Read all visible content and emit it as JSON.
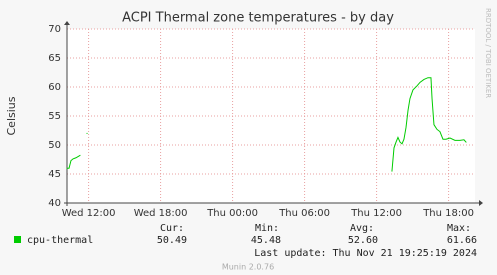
{
  "chart_data": {
    "type": "line",
    "title": "ACPI Thermal zone temperatures - by day",
    "y_label": "Celsius",
    "watermark": "RRDTOOL / TOBI OETIKER",
    "xlim": [
      10.2,
      44.2
    ],
    "xticks": [
      {
        "value": 12,
        "label": "Wed 12:00"
      },
      {
        "value": 18,
        "label": "Wed 18:00"
      },
      {
        "value": 24,
        "label": "Thu 00:00"
      },
      {
        "value": 30,
        "label": "Thu 06:00"
      },
      {
        "value": 36,
        "label": "Thu 12:00"
      },
      {
        "value": 42,
        "label": "Thu 18:00"
      }
    ],
    "ylim": [
      40,
      70
    ],
    "yticks": [
      40,
      45,
      50,
      55,
      60,
      65,
      70
    ],
    "grid": true,
    "x": [
      10.2,
      10.37,
      10.53,
      10.7,
      10.95,
      11.28,
      11.6,
      11.87,
      12.5,
      37.28,
      37.45,
      37.62,
      37.78,
      37.95,
      38.12,
      38.28,
      38.45,
      38.62,
      38.78,
      39.03,
      39.37,
      39.62,
      39.95,
      40.28,
      40.53,
      40.62,
      40.78,
      41.03,
      41.28,
      41.53,
      41.78,
      42.12,
      42.53,
      42.95,
      43.28,
      43.45
    ],
    "series": [
      {
        "name": "cpu-thermal",
        "color": "#00cc00",
        "values": [
          46,
          46,
          47.3,
          47.6,
          47.8,
          48.2,
          null,
          52,
          null,
          45.5,
          49.5,
          50.5,
          51.3,
          50.5,
          50.2,
          51,
          53,
          56,
          58,
          59.5,
          60.2,
          60.8,
          61.3,
          61.6,
          61.6,
          58,
          53.5,
          52.7,
          52.3,
          51,
          51,
          51.2,
          50.8,
          50.8,
          50.9,
          50.5
        ]
      }
    ],
    "stats": [
      {
        "label": "Cur:",
        "value": "50.49"
      },
      {
        "label": "Min:",
        "value": "45.48"
      },
      {
        "label": "Avg:",
        "value": "52.60"
      },
      {
        "label": "Max:",
        "value": "61.66"
      }
    ],
    "last_update": "Last update: Thu Nov 21 19:25:19 2024",
    "footer": "Munin 2.0.76"
  }
}
